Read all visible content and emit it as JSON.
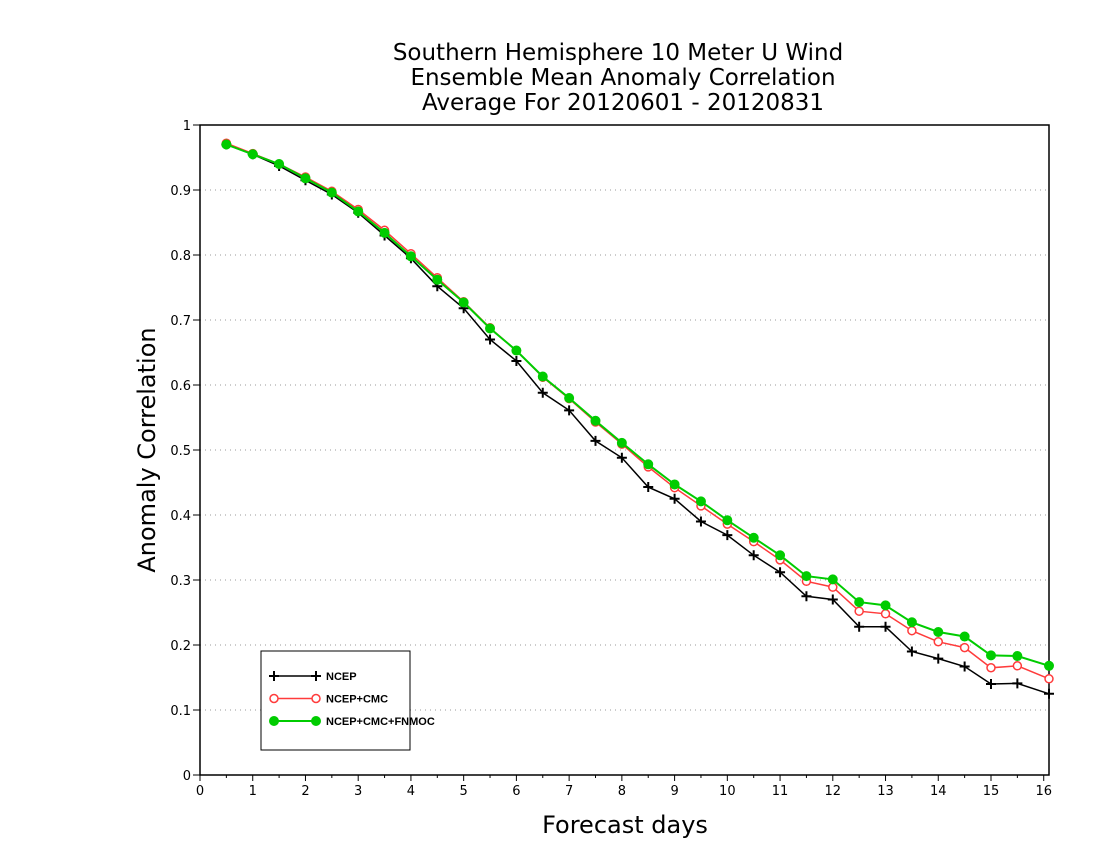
{
  "chart_data": {
    "type": "line",
    "title": [
      "Southern Hemisphere 10 Meter U Wind",
      "Ensemble Mean Anomaly Correlation",
      "Average For 20120601 - 20120831"
    ],
    "xlabel": "Forecast days",
    "ylabel": "Anomaly Correlation",
    "xlim": [
      0,
      16.1
    ],
    "ylim": [
      0,
      1
    ],
    "xticks": [
      "0",
      "1",
      "2",
      "3",
      "4",
      "5",
      "6",
      "7",
      "8",
      "9",
      "10",
      "11",
      "12",
      "13",
      "14",
      "15",
      "16"
    ],
    "yticks": [
      "0",
      "0.1",
      "0.2",
      "0.3",
      "0.4",
      "0.5",
      "0.6",
      "0.7",
      "0.8",
      "0.9",
      "1"
    ],
    "grid": "horizontal dotted",
    "legend_position": "bottom-left",
    "x": [
      0.5,
      1,
      1.5,
      2,
      2.5,
      3,
      3.5,
      4,
      4.5,
      5,
      5.5,
      6,
      6.5,
      7,
      7.5,
      8,
      8.5,
      9,
      9.5,
      10,
      10.5,
      11,
      11.5,
      12,
      12.5,
      13,
      13.5,
      14,
      14.5,
      15,
      15.5,
      16.1
    ],
    "series": [
      {
        "name": "NCEP",
        "color": "#000000",
        "marker": "plus",
        "values": [
          0.97,
          0.955,
          0.937,
          0.915,
          0.893,
          0.865,
          0.83,
          0.795,
          0.752,
          0.718,
          0.67,
          0.637,
          0.588,
          0.561,
          0.514,
          0.488,
          0.443,
          0.425,
          0.39,
          0.369,
          0.338,
          0.312,
          0.275,
          0.27,
          0.228,
          0.228,
          0.19,
          0.179,
          0.167,
          0.14,
          0.141,
          0.125
        ]
      },
      {
        "name": "NCEP+CMC",
        "color": "#ff3b3b",
        "marker": "open-circle",
        "values": [
          0.972,
          0.956,
          0.94,
          0.92,
          0.898,
          0.87,
          0.838,
          0.802,
          0.765,
          0.728,
          0.688,
          0.653,
          0.612,
          0.579,
          0.543,
          0.509,
          0.474,
          0.442,
          0.414,
          0.386,
          0.359,
          0.331,
          0.298,
          0.289,
          0.252,
          0.248,
          0.222,
          0.205,
          0.196,
          0.165,
          0.168,
          0.148
        ]
      },
      {
        "name": "NCEP+CMC+FNMOC",
        "color": "#00cc00",
        "marker": "filled-circle",
        "values": [
          0.97,
          0.955,
          0.94,
          0.918,
          0.896,
          0.867,
          0.834,
          0.798,
          0.762,
          0.727,
          0.687,
          0.653,
          0.613,
          0.58,
          0.545,
          0.511,
          0.478,
          0.447,
          0.421,
          0.392,
          0.365,
          0.338,
          0.306,
          0.301,
          0.266,
          0.261,
          0.235,
          0.22,
          0.213,
          0.184,
          0.183,
          0.168
        ]
      }
    ]
  }
}
